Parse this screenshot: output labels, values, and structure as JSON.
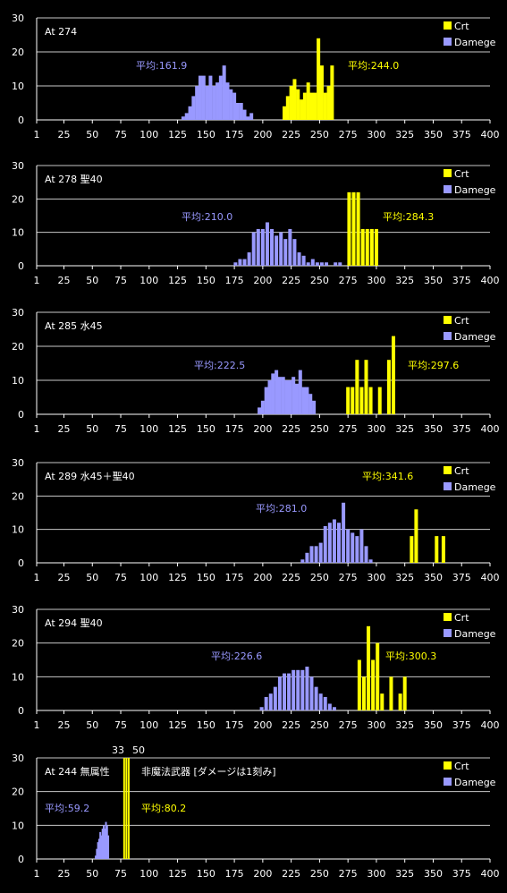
{
  "colors": {
    "background": "#000000",
    "grid": "#c8c8c8",
    "axis": "#ffffff",
    "damage": "#9999ff",
    "crit": "#ffff00",
    "text": "#ffffff"
  },
  "chart_data": [
    {
      "type": "bar",
      "title": "At 274",
      "legend": [
        "Crt",
        "Damege"
      ],
      "legend_position": "top-right",
      "xlim": [
        1,
        400
      ],
      "ylim": [
        0,
        30
      ],
      "xticks": [
        "1",
        "25",
        "50",
        "75",
        "100",
        "125",
        "150",
        "175",
        "200",
        "225",
        "250",
        "275",
        "300",
        "325",
        "350",
        "375",
        "400"
      ],
      "yticks": [
        "0",
        "10",
        "20",
        "30"
      ],
      "grid": true,
      "damage_avg_label": "平均:161.9",
      "crit_avg_label": "平均:244.0",
      "series": [
        {
          "name": "Damege",
          "x": [
            130,
            133,
            136,
            139,
            142,
            145,
            148,
            151,
            154,
            157,
            160,
            163,
            166,
            169,
            172,
            175,
            178,
            181,
            184,
            187,
            190
          ],
          "y": [
            1,
            2,
            4,
            7,
            10,
            13,
            13,
            10,
            13,
            10,
            11,
            13,
            16,
            11,
            9,
            8,
            5,
            5,
            3,
            1,
            2
          ]
        },
        {
          "name": "Crt",
          "x": [
            219,
            222,
            225,
            228,
            231,
            234,
            237,
            240,
            243,
            246,
            249,
            252,
            255,
            258,
            261
          ],
          "y": [
            4,
            7,
            10,
            12,
            9,
            6,
            8,
            11,
            8,
            8,
            24,
            16,
            8,
            10,
            16
          ]
        }
      ]
    },
    {
      "type": "bar",
      "title": "At 278 聖40",
      "legend": [
        "Crt",
        "Damege"
      ],
      "legend_position": "top-right",
      "xlim": [
        1,
        400
      ],
      "ylim": [
        0,
        30
      ],
      "xticks": [
        "1",
        "25",
        "50",
        "75",
        "100",
        "125",
        "150",
        "175",
        "200",
        "225",
        "250",
        "275",
        "300",
        "325",
        "350",
        "375",
        "400"
      ],
      "yticks": [
        "0",
        "10",
        "20",
        "30"
      ],
      "grid": true,
      "damage_avg_label": "平均:210.0",
      "crit_avg_label": "平均:284.3",
      "series": [
        {
          "name": "Damege",
          "x": [
            176,
            180,
            184,
            188,
            192,
            196,
            200,
            204,
            208,
            212,
            216,
            220,
            224,
            228,
            232,
            236,
            240,
            244,
            248,
            252,
            256,
            264,
            268
          ],
          "y": [
            1,
            2,
            2,
            4,
            10,
            11,
            11,
            13,
            11,
            9,
            10,
            8,
            11,
            8,
            4,
            3,
            1,
            2,
            1,
            1,
            1,
            1,
            1
          ]
        },
        {
          "name": "Crt",
          "x": [
            276,
            280,
            284,
            288,
            292,
            296,
            300
          ],
          "y": [
            22,
            22,
            22,
            11,
            11,
            11,
            11
          ]
        }
      ]
    },
    {
      "type": "bar",
      "title": "At 285 水45",
      "legend": [
        "Crt",
        "Damege"
      ],
      "legend_position": "top-right",
      "xlim": [
        1,
        400
      ],
      "ylim": [
        0,
        30
      ],
      "xticks": [
        "1",
        "25",
        "50",
        "75",
        "100",
        "125",
        "150",
        "175",
        "200",
        "225",
        "250",
        "275",
        "300",
        "325",
        "350",
        "375",
        "400"
      ],
      "yticks": [
        "0",
        "10",
        "20",
        "30"
      ],
      "grid": true,
      "damage_avg_label": "平均:222.5",
      "crit_avg_label": "平均:297.6",
      "series": [
        {
          "name": "Damege",
          "x": [
            197,
            200,
            203,
            206,
            209,
            212,
            215,
            218,
            221,
            224,
            227,
            230,
            233,
            236,
            239,
            242,
            245
          ],
          "y": [
            2,
            4,
            8,
            10,
            12,
            13,
            11,
            11,
            10,
            10,
            11,
            9,
            13,
            8,
            8,
            6,
            4
          ]
        },
        {
          "name": "Crt",
          "x": [
            275,
            279,
            283,
            287,
            291,
            295,
            303,
            311,
            315
          ],
          "y": [
            8,
            8,
            16,
            8,
            16,
            8,
            8,
            16,
            23
          ]
        }
      ]
    },
    {
      "type": "bar",
      "title": "At 289 水45＋聖40",
      "legend": [
        "Crt",
        "Damege"
      ],
      "legend_position": "top-right",
      "xlim": [
        1,
        400
      ],
      "ylim": [
        0,
        30
      ],
      "xticks": [
        "1",
        "25",
        "50",
        "75",
        "100",
        "125",
        "150",
        "175",
        "200",
        "225",
        "250",
        "275",
        "300",
        "325",
        "350",
        "375",
        "400"
      ],
      "yticks": [
        "0",
        "10",
        "20",
        "30"
      ],
      "grid": true,
      "damage_avg_label": "平均:281.0",
      "crit_avg_label": "平均:341.6",
      "series": [
        {
          "name": "Damege",
          "x": [
            235,
            239,
            243,
            247,
            251,
            255,
            259,
            263,
            267,
            271,
            275,
            279,
            283,
            287,
            291,
            295
          ],
          "y": [
            1,
            3,
            5,
            5,
            6,
            11,
            12,
            13,
            12,
            18,
            10,
            9,
            8,
            10,
            5,
            1
          ]
        },
        {
          "name": "Crt",
          "x": [
            331,
            335,
            353,
            359
          ],
          "y": [
            8,
            16,
            8,
            8
          ]
        }
      ]
    },
    {
      "type": "bar",
      "title": "At 294 聖40",
      "legend": [
        "Crt",
        "Damege"
      ],
      "legend_position": "top-right",
      "xlim": [
        1,
        400
      ],
      "ylim": [
        0,
        30
      ],
      "xticks": [
        "1",
        "25",
        "50",
        "75",
        "100",
        "125",
        "150",
        "175",
        "200",
        "225",
        "250",
        "275",
        "300",
        "325",
        "350",
        "375",
        "400"
      ],
      "yticks": [
        "0",
        "10",
        "20",
        "30"
      ],
      "grid": true,
      "damage_avg_label": "平均:226.6",
      "crit_avg_label": "平均:300.3",
      "series": [
        {
          "name": "Damege",
          "x": [
            199,
            203,
            207,
            211,
            215,
            219,
            223,
            227,
            231,
            235,
            239,
            243,
            247,
            251,
            255,
            259,
            263
          ],
          "y": [
            1,
            4,
            5,
            7,
            10,
            11,
            11,
            12,
            12,
            12,
            13,
            10,
            7,
            5,
            4,
            2,
            1
          ]
        },
        {
          "name": "Crt",
          "x": [
            285,
            289,
            293,
            297,
            301,
            305,
            313,
            321,
            325
          ],
          "y": [
            15,
            10,
            25,
            15,
            20,
            5,
            10,
            5,
            10
          ]
        }
      ]
    },
    {
      "type": "bar",
      "title": "At 244 無属性",
      "subtitle": "非魔法武器 [ダメージは1刻み]",
      "legend": [
        "Crt",
        "Damege"
      ],
      "legend_position": "top-right",
      "xlim": [
        1,
        400
      ],
      "ylim": [
        0,
        30
      ],
      "xticks": [
        "1",
        "25",
        "50",
        "75",
        "100",
        "125",
        "150",
        "175",
        "200",
        "225",
        "250",
        "275",
        "300",
        "325",
        "350",
        "375",
        "400"
      ],
      "yticks": [
        "0",
        "10",
        "20",
        "30"
      ],
      "grid": true,
      "damage_avg_label": "平均:59.2",
      "crit_avg_label": "平均:80.2",
      "top_labels": [
        "33",
        "50"
      ],
      "series": [
        {
          "name": "Damege",
          "x": [
            53,
            54,
            55,
            56,
            57,
            58,
            59,
            60,
            61,
            62,
            63,
            64
          ],
          "y": [
            1,
            3,
            5,
            6,
            8,
            7,
            9,
            10,
            9,
            11,
            10,
            7
          ]
        },
        {
          "name": "Crt",
          "x": [
            78,
            80,
            82
          ],
          "y": [
            30,
            30,
            30
          ]
        }
      ]
    }
  ]
}
